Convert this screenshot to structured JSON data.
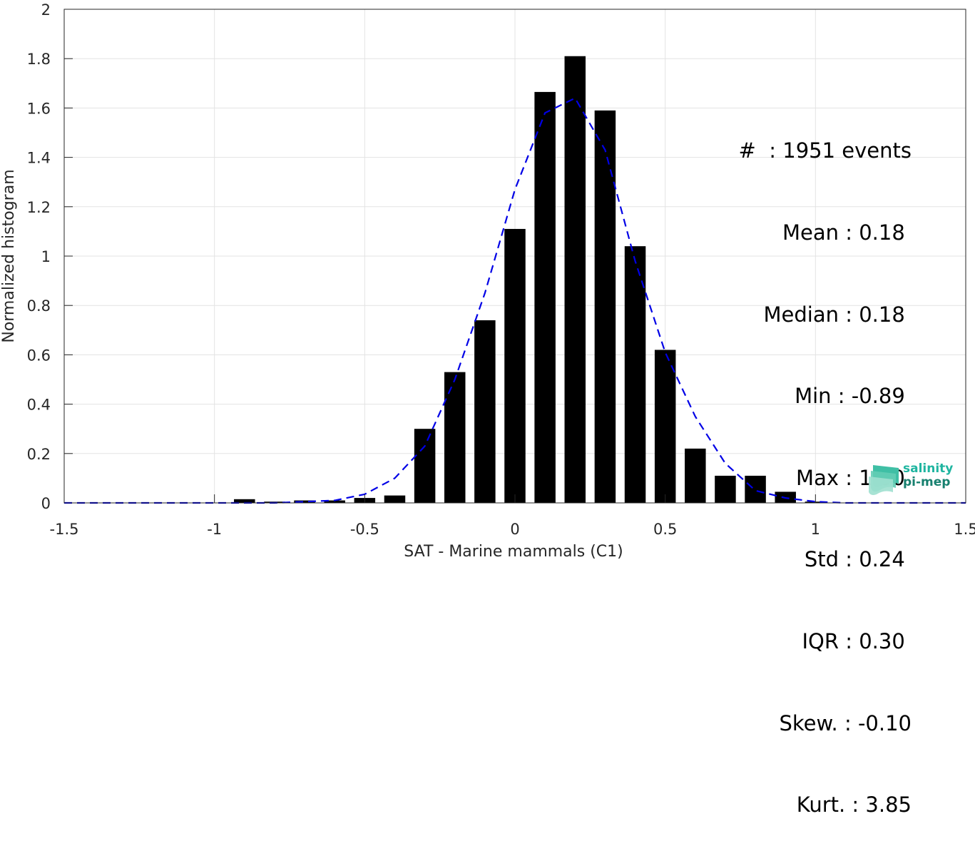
{
  "chart_data": {
    "type": "bar",
    "xlabel": "SAT - Marine mammals (C1)",
    "ylabel": "Normalized histogram",
    "xlim": [
      -1.5,
      1.5
    ],
    "ylim": [
      0,
      2
    ],
    "xticks": [
      "-1.5",
      "-1",
      "-0.5",
      "0",
      "0.5",
      "1",
      "1.5"
    ],
    "yticks": [
      "0",
      "0.2",
      "0.4",
      "0.6",
      "0.8",
      "1",
      "1.2",
      "1.4",
      "1.6",
      "1.8",
      "2"
    ],
    "grid": true,
    "bar_width": 0.07,
    "bars": {
      "x": [
        -0.9,
        -0.8,
        -0.7,
        -0.6,
        -0.5,
        -0.4,
        -0.3,
        -0.2,
        -0.1,
        0.0,
        0.1,
        0.2,
        0.3,
        0.4,
        0.5,
        0.6,
        0.7,
        0.8,
        0.9,
        1.0
      ],
      "values": [
        0.015,
        0.005,
        0.01,
        0.01,
        0.02,
        0.03,
        0.3,
        0.53,
        0.74,
        1.11,
        1.665,
        1.81,
        1.59,
        1.04,
        0.62,
        0.22,
        0.11,
        0.11,
        0.045,
        0.005
      ],
      "color": "#000000"
    },
    "fit_line": {
      "x": [
        -1.5,
        -1.4,
        -1.3,
        -1.2,
        -1.1,
        -1.0,
        -0.9,
        -0.8,
        -0.7,
        -0.6,
        -0.5,
        -0.4,
        -0.3,
        -0.2,
        -0.1,
        0.0,
        0.1,
        0.2,
        0.3,
        0.4,
        0.5,
        0.6,
        0.7,
        0.8,
        0.9,
        1.0,
        1.1,
        1.2,
        1.3,
        1.4,
        1.5
      ],
      "y": [
        0,
        0,
        0,
        0,
        0,
        0,
        0,
        0,
        0.005,
        0.01,
        0.035,
        0.1,
        0.23,
        0.5,
        0.85,
        1.27,
        1.58,
        1.64,
        1.43,
        0.98,
        0.61,
        0.35,
        0.16,
        0.05,
        0.02,
        0.005,
        0,
        0,
        0,
        0,
        0
      ],
      "color": "#0000e6",
      "style": "dashed"
    }
  },
  "stats": [
    "#  : 1951 events",
    "Mean : 0.18 ",
    "Median : 0.18 ",
    "Min : -0.89 ",
    "Max : 1.00 ",
    "Std : 0.24 ",
    "IQR : 0.30 ",
    "Skew. : -0.10",
    "Kurt. : 3.85"
  ],
  "logo": {
    "line1": "salinity",
    "line2": "pi-mep"
  }
}
